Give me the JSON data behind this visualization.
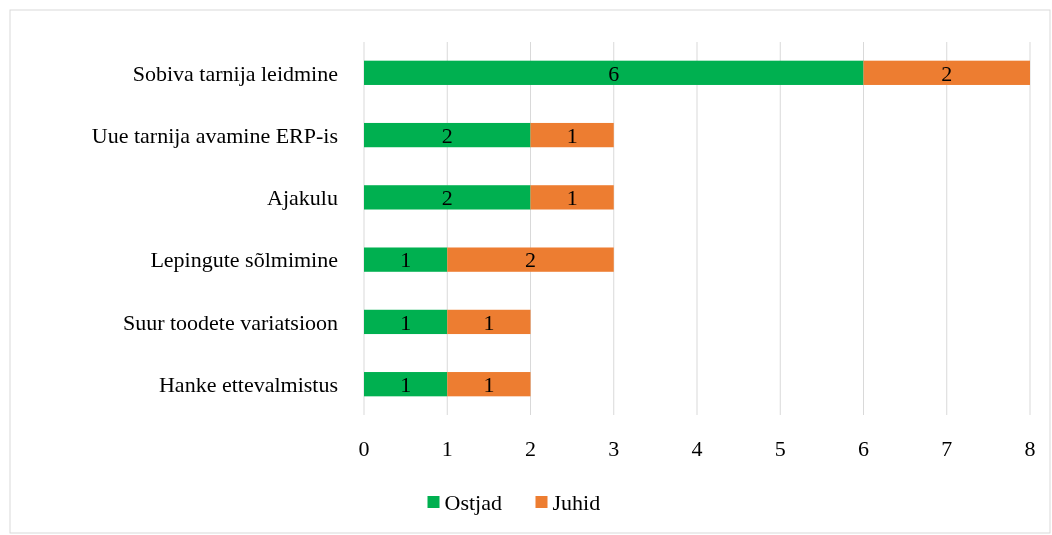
{
  "chart_data": {
    "type": "bar",
    "orientation": "horizontal",
    "stacked": true,
    "categories": [
      "Sobiva tarnija leidmine",
      "Uue tarnija avamine ERP-is",
      "Ajakulu",
      "Lepingute sõlmimine",
      "Suur toodete variatsioon",
      "Hanke ettevalmistus"
    ],
    "series": [
      {
        "name": "Ostjad",
        "color": "#00b050",
        "values": [
          6,
          2,
          2,
          1,
          1,
          1
        ]
      },
      {
        "name": "Juhid",
        "color": "#ed7d31",
        "values": [
          2,
          1,
          1,
          2,
          1,
          1
        ]
      }
    ],
    "xlim": [
      0,
      8
    ],
    "xticks": [
      0,
      1,
      2,
      3,
      4,
      5,
      6,
      7,
      8
    ],
    "grid": "x",
    "legend": "bottom",
    "data_labels": true
  }
}
